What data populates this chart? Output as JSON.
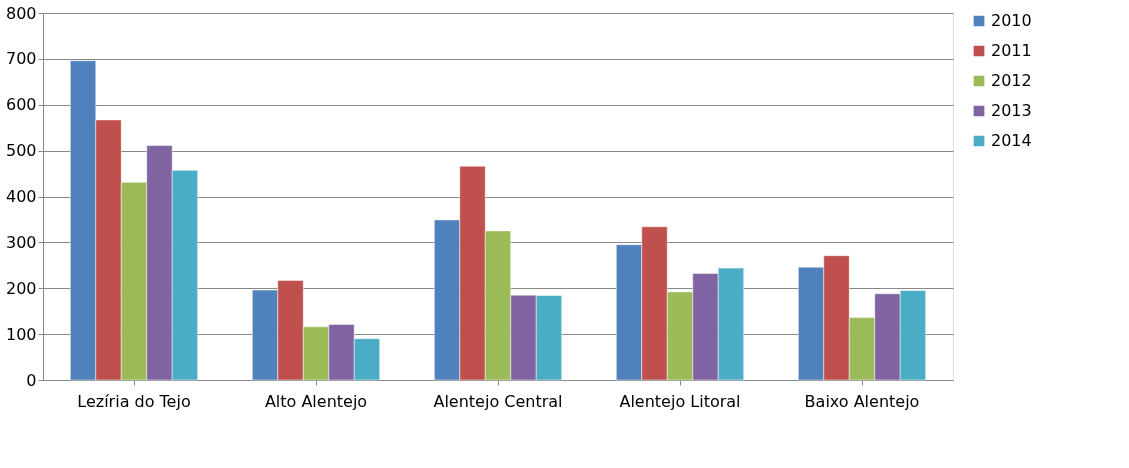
{
  "chart_data": {
    "type": "bar",
    "categories": [
      "Lezíria do Tejo",
      "Alto Alentejo",
      "Alentejo Central",
      "Alentejo Litoral",
      "Baixo Alentejo"
    ],
    "series": [
      {
        "name": "2010",
        "color": "#4f81bd",
        "values": [
          696,
          196,
          349,
          295,
          246
        ]
      },
      {
        "name": "2011",
        "color": "#c0504d",
        "values": [
          567,
          217,
          466,
          334,
          271
        ]
      },
      {
        "name": "2012",
        "color": "#9bbb59",
        "values": [
          431,
          116,
          325,
          192,
          136
        ]
      },
      {
        "name": "2013",
        "color": "#8064a2",
        "values": [
          511,
          121,
          185,
          232,
          188
        ]
      },
      {
        "name": "2014",
        "color": "#4bacc6",
        "values": [
          457,
          90,
          184,
          244,
          195
        ]
      }
    ],
    "ylim": [
      0,
      800
    ],
    "yticks": [
      0,
      100,
      200,
      300,
      400,
      500,
      600,
      700,
      800
    ],
    "grid": "y",
    "legend": "right"
  }
}
